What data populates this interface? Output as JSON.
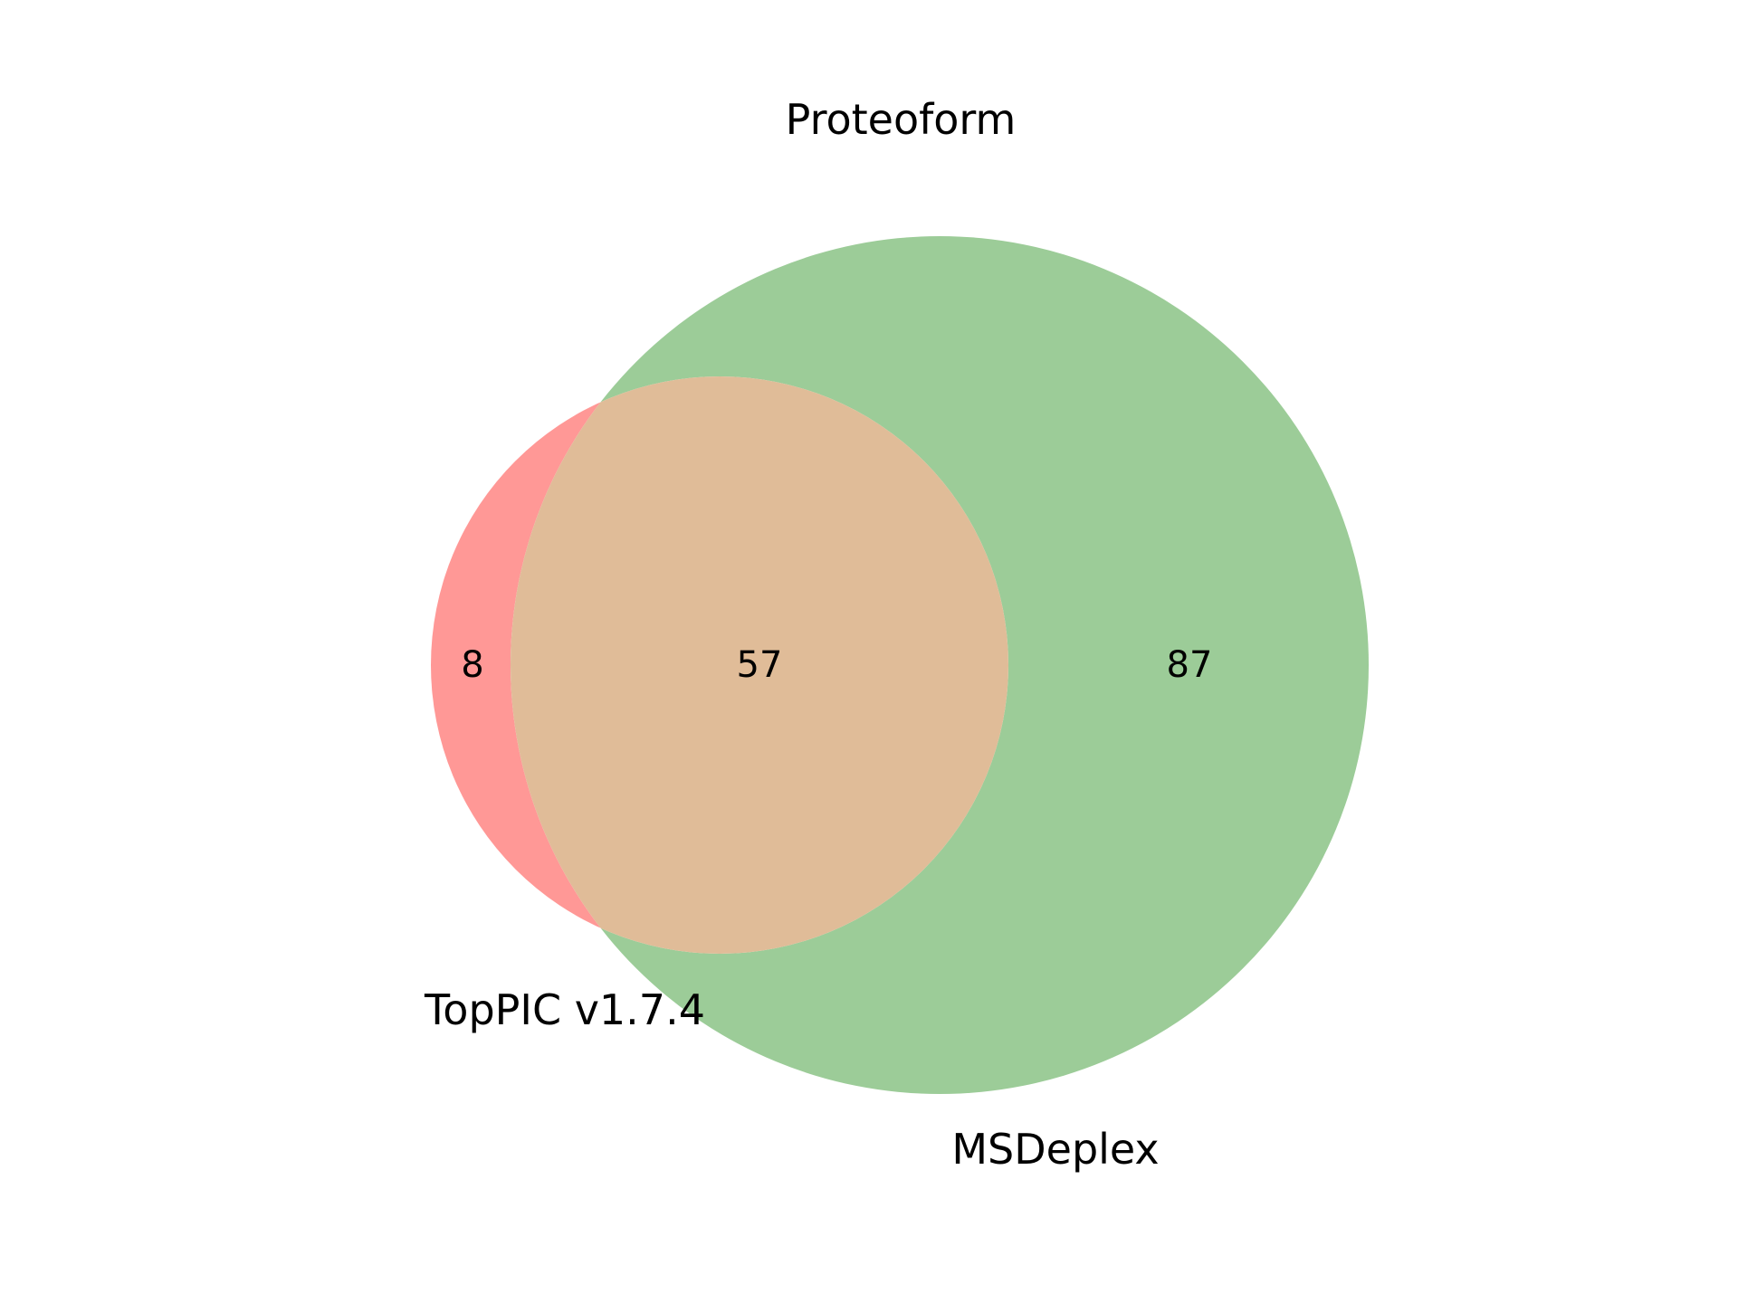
{
  "title": "Proteoform",
  "sets": [
    {
      "name": "TopPIC v1.7.4",
      "color": "#ff9896"
    },
    {
      "name": "MSDeplex",
      "color": "#9ccc98"
    }
  ],
  "intersection_color": "#e0bc98",
  "regions": {
    "only_a": "8",
    "both": "57",
    "only_b": "87"
  }
}
